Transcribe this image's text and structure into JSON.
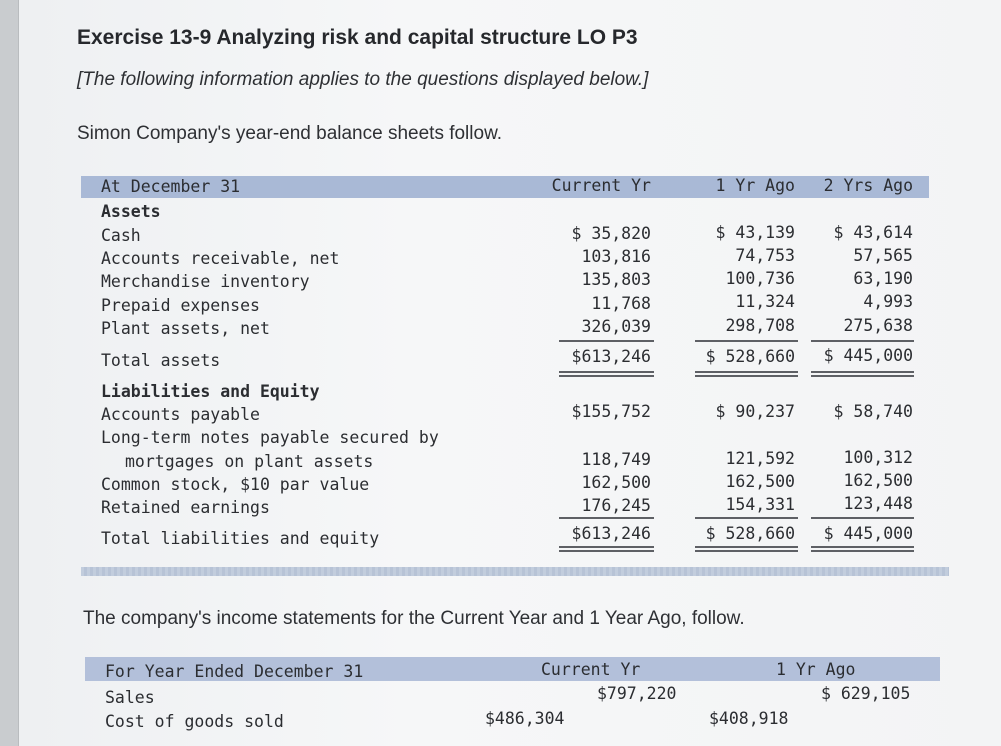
{
  "heading": {
    "title": "Exercise 13-9 Analyzing risk and capital structure LO P3",
    "note": "[The following information applies to the questions displayed below.]",
    "intro": "Simon Company's year-end balance sheets follow."
  },
  "balance_sheet": {
    "header": {
      "label": "At December 31",
      "col1": "Current Yr",
      "col2": "1 Yr Ago",
      "col3": "2 Yrs Ago"
    },
    "assets_heading": "Assets",
    "rows": [
      {
        "label": "Cash",
        "c1": "$ 35,820",
        "c2": "$ 43,139",
        "c3": "$ 43,614"
      },
      {
        "label": "Accounts receivable, net",
        "c1": "103,816",
        "c2": "74,753",
        "c3": "57,565"
      },
      {
        "label": "Merchandise inventory",
        "c1": "135,803",
        "c2": "100,736",
        "c3": "63,190"
      },
      {
        "label": "Prepaid expenses",
        "c1": "11,768",
        "c2": "11,324",
        "c3": "4,993"
      },
      {
        "label": "Plant assets, net",
        "c1": "326,039",
        "c2": "298,708",
        "c3": "275,638"
      }
    ],
    "total_assets": {
      "label": "Total assets",
      "c1": "$613,246",
      "c2": "$ 528,660",
      "c3": "$ 445,000"
    },
    "liab_heading": "Liabilities and Equity",
    "accounts_payable": {
      "label": "Accounts payable",
      "c1": "$155,752",
      "c2": "$ 90,237",
      "c3": "$ 58,740"
    },
    "notes_payable": {
      "label_line1": "Long-term notes payable secured by",
      "label_line2": "mortgages on plant assets",
      "c1": "118,749",
      "c2": "121,592",
      "c3": "100,312"
    },
    "common_stock": {
      "label": "Common stock, $10 par value",
      "c1": "162,500",
      "c2": "162,500",
      "c3": "162,500"
    },
    "retained_earnings": {
      "label": "Retained earnings",
      "c1": "176,245",
      "c2": "154,331",
      "c3": "123,448"
    },
    "total_liab_equity": {
      "label": "Total liabilities and equity",
      "c1": "$613,246",
      "c2": "$ 528,660",
      "c3": "$ 445,000"
    }
  },
  "income_intro": "The company's income statements for the Current Year and 1 Year Ago, follow.",
  "income_statement": {
    "header": {
      "label": "For Year Ended December 31",
      "col1": "Current Yr",
      "col2": "1 Yr Ago"
    },
    "sales": {
      "label": "Sales",
      "c1": "$797,220",
      "c2": "$ 629,105"
    },
    "cogs": {
      "label": "Cost of goods sold",
      "c1": "$486,304",
      "c2": "$408,918"
    }
  }
}
